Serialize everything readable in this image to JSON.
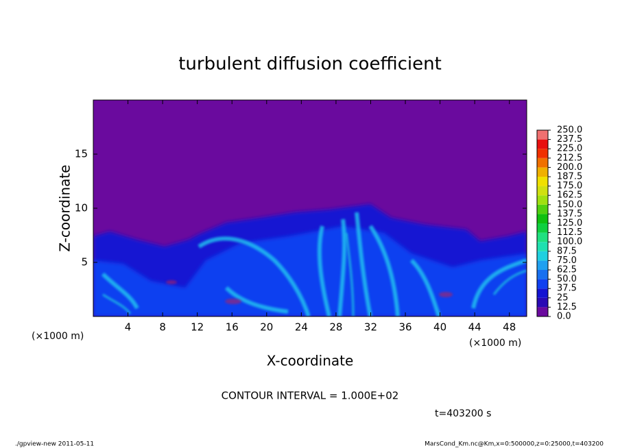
{
  "chart_data": {
    "type": "contour",
    "title": "turbulent diffusion coefficient",
    "xlabel": "X-coordinate",
    "ylabel": "Z-coordinate",
    "x_unit_labels": [
      "(×1000 m)",
      "(×1000 m)"
    ],
    "xlim": [
      0,
      50
    ],
    "ylim": [
      0,
      20
    ],
    "xticks": [
      4,
      8,
      12,
      16,
      20,
      24,
      28,
      32,
      36,
      40,
      44,
      48
    ],
    "yticks": [
      5,
      10,
      15
    ],
    "background_color": "#6a0a9e",
    "colorbar": {
      "levels": [
        {
          "value": 0,
          "label": "0.0"
        },
        12.5,
        25,
        37.5,
        {
          "value": 50,
          "label": "50.0"
        },
        62.5,
        {
          "value": 75,
          "label": "75.0"
        },
        87.5,
        {
          "value": 100,
          "label": "100.0"
        },
        112.5,
        {
          "value": 125,
          "label": "125.0"
        },
        137.5,
        {
          "value": 150,
          "label": "150.0"
        },
        162.5,
        {
          "value": 175,
          "label": "175.0"
        },
        187.5,
        {
          "value": 200,
          "label": "200.0"
        },
        212.5,
        {
          "value": 225,
          "label": "225.0"
        },
        237.5,
        {
          "value": 250,
          "label": "250.0"
        }
      ],
      "colors": [
        "#6a0a9e",
        "#2a0ab4",
        "#1414d2",
        "#1040f0",
        "#1870f0",
        "#20a0f0",
        "#20d0e0",
        "#20e0b0",
        "#20e080",
        "#10d040",
        "#10c010",
        "#50d010",
        "#a0e010",
        "#d0e010",
        "#f0e000",
        "#f0b000",
        "#f07000",
        "#f03000",
        "#e81010",
        "#f07070"
      ]
    },
    "annotation": "CONTOUR INTERVAL = 1.000E+02",
    "time_label": "t=403200 s",
    "footer_left": "./gpview-new   2011-05-11",
    "footer_right": "MarsCond_Km.nc@Km,x=0:500000,z=0:25000,t=403200"
  }
}
